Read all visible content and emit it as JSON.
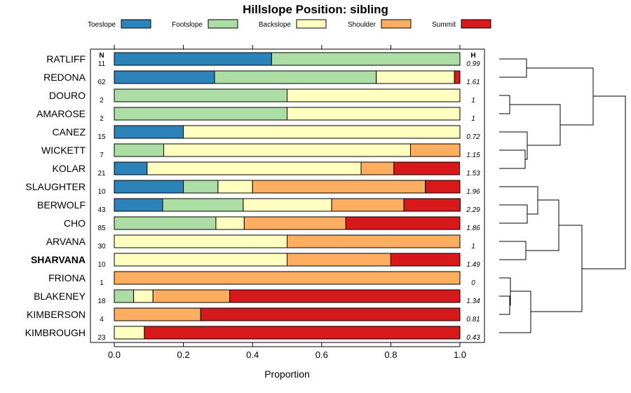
{
  "chart_data": {
    "type": "bar",
    "orientation": "horizontal",
    "stacked": true,
    "title": "Hillslope Position: sibling",
    "xlabel": "Proportion",
    "xlim": [
      0,
      1
    ],
    "xticks": [
      "0.0",
      "0.2",
      "0.4",
      "0.6",
      "0.8",
      "1.0"
    ],
    "legend_position": "top",
    "n_header": "N",
    "h_header": "H",
    "series": [
      {
        "name": "Toeslope",
        "color": "#2b83ba"
      },
      {
        "name": "Footslope",
        "color": "#abdda4"
      },
      {
        "name": "Backslope",
        "color": "#ffffbf"
      },
      {
        "name": "Shoulder",
        "color": "#fdae61"
      },
      {
        "name": "Summit",
        "color": "#d7191c"
      }
    ],
    "categories": [
      {
        "name": "RATLIFF",
        "n": "11",
        "h": "0.99",
        "values": [
          0.455,
          0.545,
          0,
          0,
          0
        ]
      },
      {
        "name": "REDONA",
        "n": "62",
        "h": "1.61",
        "values": [
          0.29,
          0.468,
          0.226,
          0,
          0.016
        ]
      },
      {
        "name": "DOURO",
        "n": "2",
        "h": "1",
        "values": [
          0,
          0.5,
          0.5,
          0,
          0
        ]
      },
      {
        "name": "AMAROSE",
        "n": "2",
        "h": "1",
        "values": [
          0,
          0.5,
          0.5,
          0,
          0
        ]
      },
      {
        "name": "CANEZ",
        "n": "15",
        "h": "0.72",
        "values": [
          0.2,
          0,
          0.8,
          0,
          0
        ]
      },
      {
        "name": "WICKETT",
        "n": "7",
        "h": "1.15",
        "values": [
          0,
          0.143,
          0.714,
          0.143,
          0
        ]
      },
      {
        "name": "KOLAR",
        "n": "21",
        "h": "1.53",
        "values": [
          0.095,
          0,
          0.619,
          0.095,
          0.19
        ]
      },
      {
        "name": "SLAUGHTER",
        "n": "10",
        "h": "1.96",
        "values": [
          0.2,
          0.1,
          0.1,
          0.5,
          0.1
        ]
      },
      {
        "name": "BERWOLF",
        "n": "43",
        "h": "2.29",
        "values": [
          0.14,
          0.233,
          0.256,
          0.209,
          0.163
        ]
      },
      {
        "name": "CHO",
        "n": "85",
        "h": "1.86",
        "values": [
          0,
          0.294,
          0.082,
          0.294,
          0.33
        ]
      },
      {
        "name": "ARVANA",
        "n": "30",
        "h": "1",
        "values": [
          0,
          0,
          0.5,
          0.5,
          0
        ]
      },
      {
        "name": "SHARVANA",
        "n": "10",
        "h": "1.49",
        "values": [
          0,
          0,
          0.5,
          0.3,
          0.2
        ],
        "bold": true
      },
      {
        "name": "FRIONA",
        "n": "1",
        "h": "0",
        "values": [
          0,
          0,
          0,
          1,
          0
        ]
      },
      {
        "name": "BLAKENEY",
        "n": "18",
        "h": "1.34",
        "values": [
          0,
          0.056,
          0.056,
          0.222,
          0.666
        ]
      },
      {
        "name": "KIMBERSON",
        "n": "4",
        "h": "0.81",
        "values": [
          0,
          0,
          0,
          0.25,
          0.75
        ]
      },
      {
        "name": "KIMBROUGH",
        "n": "23",
        "h": "0.43",
        "values": [
          0,
          0,
          0.087,
          0,
          0.913
        ]
      }
    ]
  }
}
